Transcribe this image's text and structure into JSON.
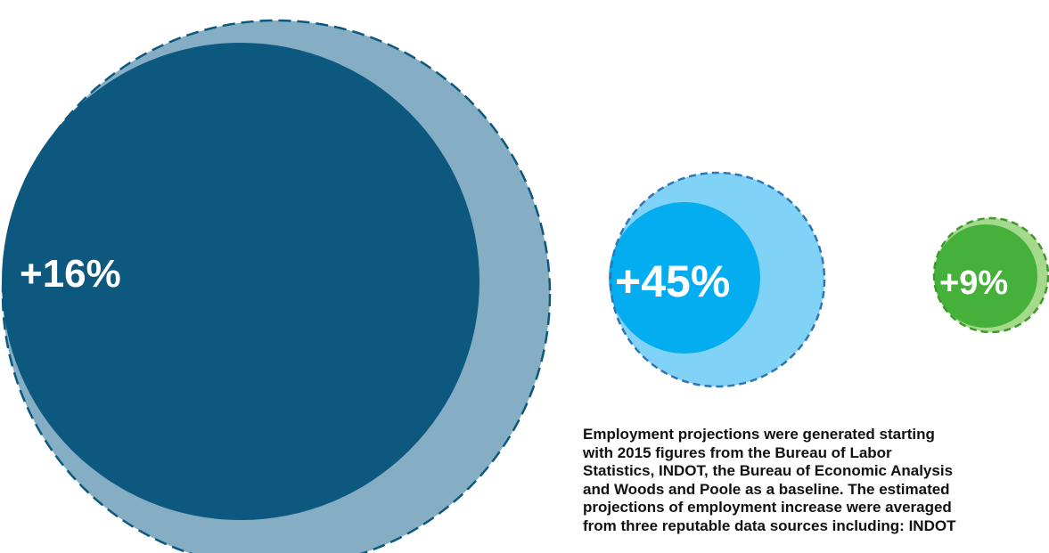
{
  "chart_data": {
    "type": "bubble",
    "bubbles": [
      {
        "label": "+16%",
        "value": 16,
        "colors": {
          "outer": "#85aec4",
          "inner": "#0c587e",
          "dash": "#0c587e"
        }
      },
      {
        "label": "+45%",
        "value": 45,
        "colors": {
          "outer": "#80d2f6",
          "inner": "#04adef",
          "dash": "#2f75b5"
        }
      },
      {
        "label": "+9%",
        "value": 9,
        "colors": {
          "outer": "#a5d98c",
          "inner": "#45b13a",
          "dash": "#3f9a2a"
        }
      }
    ]
  },
  "note": {
    "lines": [
      "Employment projections were generated starting",
      "with 2015 figures from the Bureau of Labor",
      "Statistics, INDOT, the Bureau of Economic Analysis",
      "and Woods and Poole as a baseline. The estimated",
      "projections of employment increase were averaged",
      "from three reputable data sources including: INDOT"
    ]
  }
}
